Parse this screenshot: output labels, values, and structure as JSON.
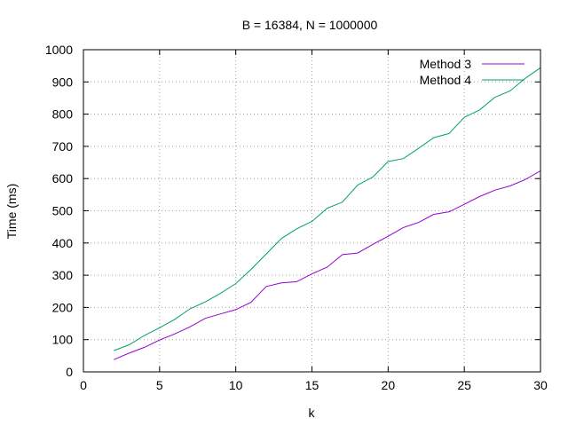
{
  "chart_data": {
    "type": "line",
    "title": "B = 16384, N = 1000000",
    "xlabel": "k",
    "ylabel": "Time (ms)",
    "xlim": [
      0,
      30
    ],
    "ylim": [
      0,
      1000
    ],
    "xticks": [
      0,
      5,
      10,
      15,
      20,
      25,
      30
    ],
    "yticks": [
      0,
      100,
      200,
      300,
      400,
      500,
      600,
      700,
      800,
      900,
      1000
    ],
    "grid": true,
    "legend_position": "top-right",
    "x": [
      2,
      3,
      4,
      5,
      6,
      7,
      8,
      9,
      10,
      11,
      12,
      13,
      14,
      15,
      16,
      17,
      18,
      19,
      20,
      21,
      22,
      23,
      24,
      25,
      26,
      27,
      28,
      29,
      30
    ],
    "series": [
      {
        "name": "Method 3",
        "color": "#9400d3",
        "values": [
          38,
          58,
          76,
          99,
          118,
          140,
          166,
          180,
          193,
          216,
          265,
          276,
          280,
          304,
          325,
          364,
          369,
          396,
          421,
          448,
          464,
          489,
          497,
          520,
          544,
          564,
          577,
          597,
          624
        ]
      },
      {
        "name": "Method 4",
        "color": "#009e73",
        "values": [
          66,
          84,
          113,
          137,
          163,
          196,
          217,
          244,
          274,
          318,
          366,
          414,
          444,
          467,
          508,
          527,
          580,
          605,
          653,
          662,
          694,
          727,
          740,
          790,
          813,
          852,
          872,
          911,
          944
        ]
      }
    ]
  }
}
